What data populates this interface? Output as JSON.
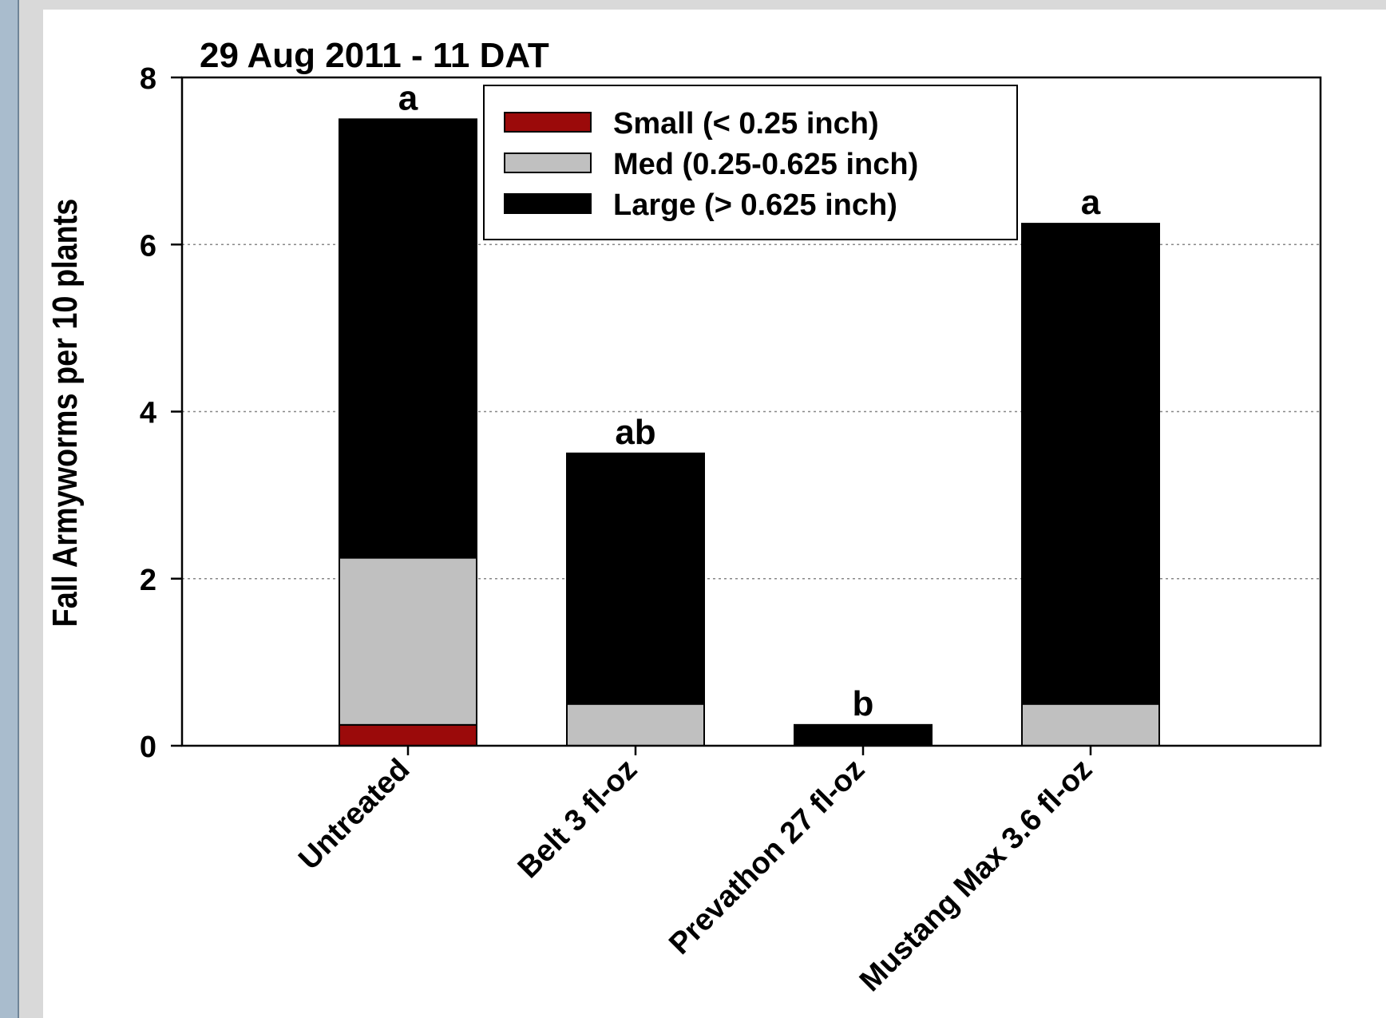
{
  "chart_data": {
    "type": "bar",
    "stacked": true,
    "title": "29 Aug 2011 - 11 DAT",
    "xlabel": "",
    "ylabel": "Fall Armyworms per 10 plants",
    "ylim": [
      0,
      8
    ],
    "yticks": [
      0,
      2,
      4,
      6,
      8
    ],
    "grid": "horizontal dotted",
    "legend_position": "top-center",
    "categories": [
      "Untreated",
      "Belt 3 fl-oz",
      "Prevathon 27 fl-oz",
      "Mustang Max 3.6 fl-oz"
    ],
    "series": [
      {
        "name": "Small (< 0.25 inch)",
        "color": "#9b0a0a",
        "values": [
          0.25,
          0,
          0,
          0
        ]
      },
      {
        "name": "Med (0.25-0.625 inch)",
        "color": "#c0c0c0",
        "values": [
          2.0,
          0.5,
          0,
          0.5
        ]
      },
      {
        "name": "Large (> 0.625 inch)",
        "color": "#000000",
        "values": [
          5.25,
          3.0,
          0.25,
          5.75
        ]
      }
    ],
    "annotations": [
      "a",
      "ab",
      "b",
      "a"
    ]
  }
}
